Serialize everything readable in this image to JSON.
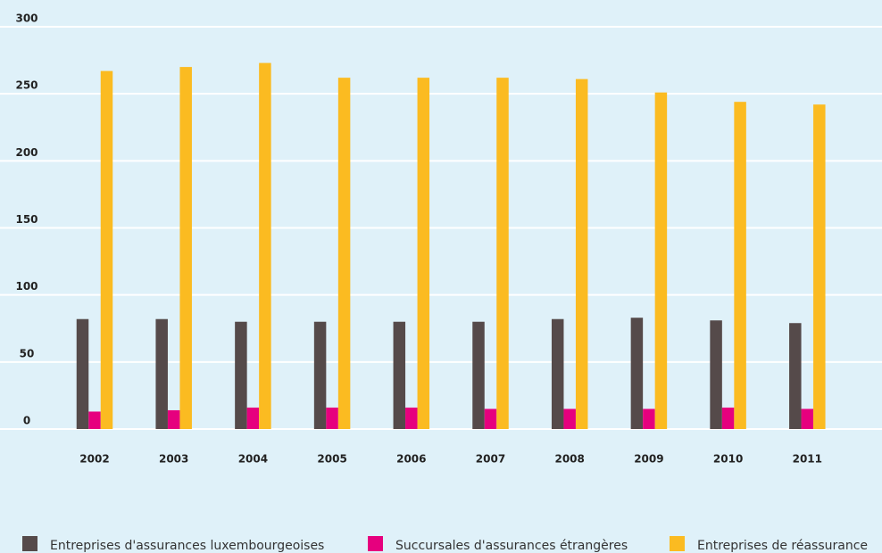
{
  "chart_data": {
    "type": "bar",
    "categories": [
      "2002",
      "2003",
      "2004",
      "2005",
      "2006",
      "2007",
      "2008",
      "2009",
      "2010",
      "2011"
    ],
    "series": [
      {
        "name": "Entreprises d'assurances luxembourgeoises",
        "color": "#554a4a",
        "values": [
          82,
          82,
          80,
          80,
          80,
          80,
          82,
          83,
          81,
          79
        ]
      },
      {
        "name": "Succursales d'assurances étrangères",
        "color": "#e6007e",
        "values": [
          13,
          14,
          16,
          16,
          16,
          15,
          15,
          15,
          16,
          15
        ]
      },
      {
        "name": "Entreprises de réassurance",
        "color": "#fbbb21",
        "values": [
          267,
          270,
          273,
          262,
          262,
          262,
          261,
          251,
          244,
          242
        ]
      }
    ],
    "ylim": [
      0,
      300
    ],
    "yticks": [
      0,
      50,
      100,
      150,
      200,
      250,
      300
    ],
    "grid": true,
    "legend": "bottom"
  }
}
